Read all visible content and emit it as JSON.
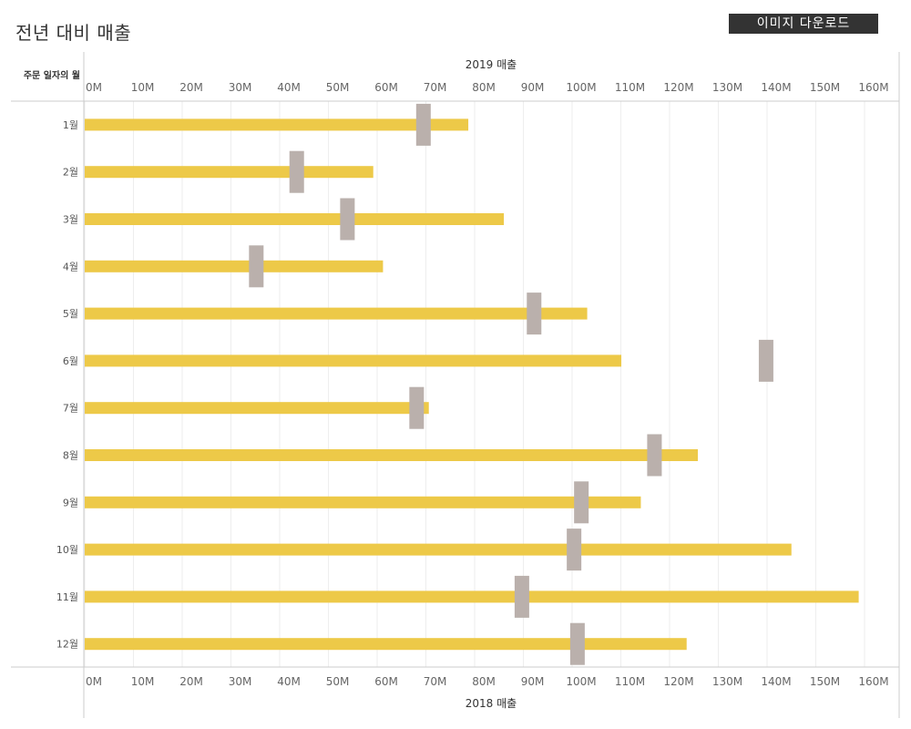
{
  "title": "전년 대비 매출",
  "download_button": "이미지 다운로드",
  "row_header": "주문 일자의 월",
  "colors": {
    "bar": "#EDC948",
    "reference": "#BAB0AC",
    "grid": "#EEEEEE",
    "axis": "#CCCCCC"
  },
  "chart_data": {
    "type": "bar",
    "subtype": "bullet",
    "categories": [
      "1월",
      "2월",
      "3월",
      "4월",
      "5월",
      "6월",
      "7월",
      "8월",
      "9월",
      "10월",
      "11월",
      "12월"
    ],
    "series": [
      {
        "name": "2019 매출",
        "values": [
          78.7,
          59.2,
          86.0,
          61.2,
          103.1,
          110.1,
          70.6,
          125.8,
          114.1,
          145.0,
          158.8,
          123.5
        ]
      },
      {
        "name": "2018 매출",
        "values": [
          69.5,
          43.5,
          53.9,
          35.2,
          92.2,
          139.8,
          68.1,
          116.9,
          101.9,
          100.4,
          89.7,
          101.1
        ]
      }
    ],
    "x_ticks": [
      "0M",
      "10M",
      "20M",
      "30M",
      "40M",
      "50M",
      "60M",
      "70M",
      "80M",
      "90M",
      "100M",
      "110M",
      "120M",
      "130M",
      "140M",
      "150M",
      "160M"
    ],
    "xlim": [
      0,
      160
    ],
    "x_unit": "M",
    "top_axis_label": "2019 매출",
    "bottom_axis_label": "2018 매출",
    "grid": true
  }
}
